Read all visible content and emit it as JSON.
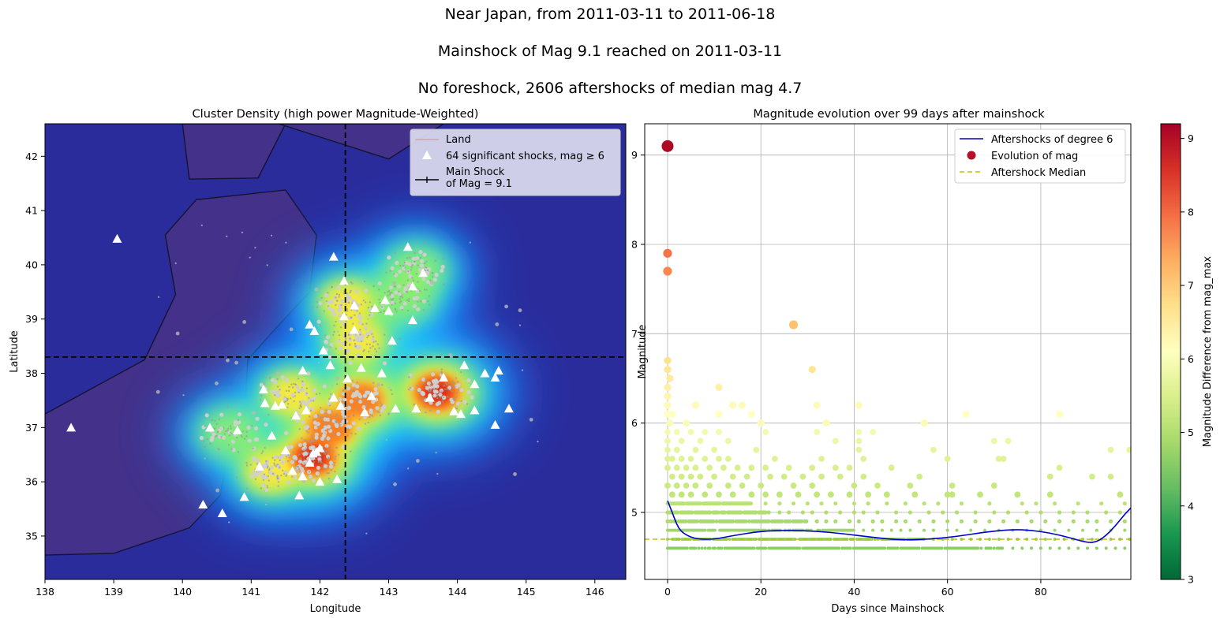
{
  "suptitle": {
    "line1": "Near Japan, from 2011-03-11 to 2011-06-18",
    "line2": "Mainshock of Mag 9.1 reached on 2011-03-11",
    "line3": "No foreshock, 2606 aftershocks of median mag 4.7"
  },
  "chart_data": [
    {
      "type": "scatter",
      "title": "Cluster Density (high power Magnitude-Weighted)",
      "xlabel": "Longitude",
      "ylabel": "Latitude",
      "xlim": [
        138,
        146.45
      ],
      "ylim": [
        34.2,
        42.6
      ],
      "xticks": [
        138,
        139,
        140,
        141,
        142,
        143,
        144,
        145,
        146
      ],
      "yticks": [
        35,
        36,
        37,
        38,
        39,
        40,
        41,
        42
      ],
      "mainshock": {
        "lon": 142.37,
        "lat": 38.3,
        "mag": 9.1
      },
      "legend": {
        "position": "top-right",
        "items": [
          {
            "label": "Land",
            "color": "#c9a7b5"
          },
          {
            "label": "64 significant shocks, mag ≥ 6",
            "color": "#ffffff"
          },
          {
            "label": "Main Shock\nof Mag = 9.1",
            "color": "#000000"
          }
        ]
      },
      "land_polygons": [
        [
          [
            138,
            37.25
          ],
          [
            139.45,
            38.25
          ],
          [
            139.9,
            39.45
          ],
          [
            139.75,
            40.55
          ],
          [
            140.2,
            41.2
          ],
          [
            141.5,
            41.38
          ],
          [
            141.95,
            40.55
          ],
          [
            141.85,
            39.5
          ],
          [
            141.3,
            38.75
          ],
          [
            140.95,
            38.25
          ],
          [
            140.9,
            37.2
          ],
          [
            140.65,
            36.5
          ],
          [
            140.55,
            35.75
          ],
          [
            140.1,
            35.15
          ],
          [
            139.0,
            34.68
          ],
          [
            138,
            34.65
          ]
        ],
        [
          [
            140.0,
            42.6
          ],
          [
            140.1,
            41.58
          ],
          [
            141.1,
            41.6
          ],
          [
            141.5,
            42.6
          ]
        ],
        [
          [
            141.4,
            42.6
          ],
          [
            143.0,
            41.95
          ],
          [
            143.8,
            42.6
          ]
        ]
      ],
      "density_clusters": [
        {
          "lon": 141.9,
          "lat": 36.45,
          "level": 1.0
        },
        {
          "lon": 142.15,
          "lat": 37.0,
          "level": 0.9
        },
        {
          "lon": 143.7,
          "lat": 37.65,
          "level": 1.0
        },
        {
          "lon": 142.6,
          "lat": 37.5,
          "level": 0.85
        },
        {
          "lon": 141.6,
          "lat": 37.6,
          "level": 0.5
        },
        {
          "lon": 142.55,
          "lat": 38.6,
          "level": 0.55
        },
        {
          "lon": 142.4,
          "lat": 39.3,
          "level": 0.5
        },
        {
          "lon": 143.2,
          "lat": 39.4,
          "level": 0.45
        },
        {
          "lon": 143.4,
          "lat": 39.9,
          "level": 0.4
        },
        {
          "lon": 140.7,
          "lat": 36.9,
          "level": 0.4
        },
        {
          "lon": 141.3,
          "lat": 36.2,
          "level": 0.55
        }
      ],
      "significant_shocks": [
        [
          139.05,
          40.48
        ],
        [
          138.38,
          37.0
        ],
        [
          140.3,
          35.58
        ],
        [
          140.4,
          37.0
        ],
        [
          140.58,
          35.42
        ],
        [
          140.9,
          35.72
        ],
        [
          141.18,
          37.7
        ],
        [
          141.2,
          37.45
        ],
        [
          141.35,
          37.4
        ],
        [
          141.12,
          36.28
        ],
        [
          141.5,
          36.58
        ],
        [
          141.65,
          37.22
        ],
        [
          141.75,
          38.05
        ],
        [
          141.8,
          37.32
        ],
        [
          141.85,
          38.9
        ],
        [
          141.92,
          38.78
        ],
        [
          141.6,
          36.2
        ],
        [
          141.7,
          35.75
        ],
        [
          141.85,
          36.35
        ],
        [
          141.95,
          36.55
        ],
        [
          142.0,
          36.0
        ],
        [
          142.2,
          37.55
        ],
        [
          142.25,
          36.05
        ],
        [
          142.3,
          37.4
        ],
        [
          142.35,
          39.05
        ],
        [
          142.5,
          39.25
        ],
        [
          142.35,
          39.7
        ],
        [
          142.2,
          40.15
        ],
        [
          142.6,
          38.1
        ],
        [
          142.75,
          37.58
        ],
        [
          142.8,
          39.2
        ],
        [
          142.95,
          39.35
        ],
        [
          143.0,
          39.15
        ],
        [
          143.1,
          37.35
        ],
        [
          143.28,
          40.33
        ],
        [
          143.35,
          38.98
        ],
        [
          143.35,
          39.6
        ],
        [
          143.5,
          39.85
        ],
        [
          143.4,
          37.35
        ],
        [
          143.8,
          37.92
        ],
        [
          143.95,
          37.3
        ],
        [
          144.05,
          37.25
        ],
        [
          144.1,
          38.15
        ],
        [
          144.25,
          37.8
        ],
        [
          144.25,
          37.32
        ],
        [
          144.55,
          37.92
        ],
        [
          144.6,
          38.05
        ],
        [
          144.55,
          37.05
        ],
        [
          144.75,
          37.35
        ],
        [
          141.9,
          36.52
        ],
        [
          142.0,
          36.62
        ],
        [
          141.75,
          36.1
        ],
        [
          142.65,
          37.28
        ],
        [
          142.5,
          38.8
        ],
        [
          142.05,
          38.42
        ],
        [
          141.45,
          37.42
        ],
        [
          142.9,
          38.0
        ],
        [
          143.6,
          37.55
        ],
        [
          142.4,
          37.9
        ],
        [
          141.3,
          36.85
        ],
        [
          140.8,
          36.95
        ],
        [
          142.15,
          38.15
        ],
        [
          143.05,
          38.6
        ],
        [
          144.4,
          38.0
        ]
      ],
      "small_events_summary": "about 2600 small gray epicenters"
    },
    {
      "type": "scatter",
      "title": "Magnitude evolution over 99 days after mainshock",
      "xlabel": "Days since Mainshock",
      "ylabel": "Magnitude",
      "xlim": [
        -4.9,
        99.3
      ],
      "ylim": [
        4.25,
        9.35
      ],
      "xticks": [
        0,
        20,
        40,
        60,
        80
      ],
      "yticks": [
        5,
        6,
        7,
        8,
        9
      ],
      "grid": true,
      "median": 4.7,
      "colorbar": {
        "label": "Magnitude Difference from mag_max",
        "range": [
          3,
          9.2
        ],
        "ticks": [
          3,
          4,
          5,
          6,
          7,
          8,
          9
        ],
        "colormap": "RdYlGn_r"
      },
      "legend": {
        "position": "top-right",
        "items": [
          {
            "label": "Aftershocks of degree 6",
            "color": "#0000cc"
          },
          {
            "label": "Evolution of mag",
            "color": "#b2122b"
          },
          {
            "label": "Aftershock Median",
            "color": "#bfbf00"
          }
        ]
      },
      "fit_curve": [
        [
          0,
          5.13
        ],
        [
          1,
          5.0
        ],
        [
          2,
          4.86
        ],
        [
          3,
          4.78
        ],
        [
          5,
          4.72
        ],
        [
          7,
          4.7
        ],
        [
          10,
          4.7
        ],
        [
          14,
          4.74
        ],
        [
          20,
          4.79
        ],
        [
          26,
          4.8
        ],
        [
          32,
          4.79
        ],
        [
          38,
          4.76
        ],
        [
          44,
          4.72
        ],
        [
          50,
          4.69
        ],
        [
          56,
          4.7
        ],
        [
          62,
          4.73
        ],
        [
          68,
          4.78
        ],
        [
          74,
          4.81
        ],
        [
          78,
          4.8
        ],
        [
          82,
          4.77
        ],
        [
          86,
          4.72
        ],
        [
          90,
          4.66
        ],
        [
          92,
          4.67
        ],
        [
          94,
          4.74
        ],
        [
          96,
          4.85
        ],
        [
          98,
          4.98
        ],
        [
          99.3,
          5.05
        ]
      ],
      "large_events": [
        {
          "day": 0,
          "mag": 9.1
        },
        {
          "day": 0,
          "mag": 7.9
        },
        {
          "day": 0,
          "mag": 7.7
        },
        {
          "day": 27,
          "mag": 7.1
        },
        {
          "day": 0,
          "mag": 6.7
        },
        {
          "day": 31,
          "mag": 6.6
        },
        {
          "day": 0,
          "mag": 6.6
        },
        {
          "day": 0.5,
          "mag": 6.5
        },
        {
          "day": 0,
          "mag": 6.4
        },
        {
          "day": 11,
          "mag": 6.4
        },
        {
          "day": 0,
          "mag": 6.3
        },
        {
          "day": 0,
          "mag": 6.2
        },
        {
          "day": 6,
          "mag": 6.2
        },
        {
          "day": 14,
          "mag": 6.2
        },
        {
          "day": 16,
          "mag": 6.2
        },
        {
          "day": 32,
          "mag": 6.2
        },
        {
          "day": 41,
          "mag": 6.2
        },
        {
          "day": 0,
          "mag": 6.1
        },
        {
          "day": 1,
          "mag": 6.1
        },
        {
          "day": 11,
          "mag": 6.1
        },
        {
          "day": 18,
          "mag": 6.1
        },
        {
          "day": 64,
          "mag": 6.1
        },
        {
          "day": 84,
          "mag": 6.1
        },
        {
          "day": 0.5,
          "mag": 6.0
        },
        {
          "day": 4,
          "mag": 6.0
        },
        {
          "day": 20,
          "mag": 6.0
        },
        {
          "day": 34,
          "mag": 6.0
        },
        {
          "day": 55,
          "mag": 6.0
        }
      ],
      "mid_events": [
        [
          0,
          5.9
        ],
        [
          2,
          5.9
        ],
        [
          5,
          5.9
        ],
        [
          8,
          5.9
        ],
        [
          11,
          5.9
        ],
        [
          21,
          5.9
        ],
        [
          32,
          5.9
        ],
        [
          41,
          5.9
        ],
        [
          44,
          5.9
        ],
        [
          0,
          5.8
        ],
        [
          3,
          5.8
        ],
        [
          7,
          5.8
        ],
        [
          13,
          5.8
        ],
        [
          36,
          5.8
        ],
        [
          41,
          5.8
        ],
        [
          70,
          5.8
        ],
        [
          73,
          5.8
        ],
        [
          0,
          5.7
        ],
        [
          2,
          5.7
        ],
        [
          6,
          5.7
        ],
        [
          10,
          5.7
        ],
        [
          19,
          5.7
        ],
        [
          41,
          5.7
        ],
        [
          57,
          5.7
        ],
        [
          95,
          5.7
        ],
        [
          99,
          5.7
        ],
        [
          0,
          5.6
        ],
        [
          1,
          5.6
        ],
        [
          3,
          5.6
        ],
        [
          5,
          5.6
        ],
        [
          8,
          5.6
        ],
        [
          11,
          5.6
        ],
        [
          13,
          5.6
        ],
        [
          23,
          5.6
        ],
        [
          33,
          5.6
        ],
        [
          42,
          5.6
        ],
        [
          60,
          5.6
        ],
        [
          71,
          5.6
        ],
        [
          72,
          5.6
        ],
        [
          0,
          5.5
        ],
        [
          2,
          5.5
        ],
        [
          4,
          5.5
        ],
        [
          6,
          5.5
        ],
        [
          9,
          5.5
        ],
        [
          12,
          5.5
        ],
        [
          15,
          5.5
        ],
        [
          18,
          5.5
        ],
        [
          21,
          5.5
        ],
        [
          26,
          5.5
        ],
        [
          31,
          5.5
        ],
        [
          36,
          5.5
        ],
        [
          39,
          5.5
        ],
        [
          48,
          5.5
        ],
        [
          84,
          5.5
        ],
        [
          1,
          5.4
        ],
        [
          3,
          5.4
        ],
        [
          5,
          5.4
        ],
        [
          7,
          5.4
        ],
        [
          10,
          5.4
        ],
        [
          14,
          5.4
        ],
        [
          17,
          5.4
        ],
        [
          22,
          5.4
        ],
        [
          25,
          5.4
        ],
        [
          29,
          5.4
        ],
        [
          33,
          5.4
        ],
        [
          37,
          5.4
        ],
        [
          42,
          5.4
        ],
        [
          54,
          5.4
        ],
        [
          82,
          5.4
        ],
        [
          91,
          5.4
        ],
        [
          95,
          5.4
        ],
        [
          0,
          5.3
        ],
        [
          2,
          5.3
        ],
        [
          4,
          5.3
        ],
        [
          6,
          5.3
        ],
        [
          9,
          5.3
        ],
        [
          13,
          5.3
        ],
        [
          16,
          5.3
        ],
        [
          20,
          5.3
        ],
        [
          27,
          5.3
        ],
        [
          31,
          5.3
        ],
        [
          40,
          5.3
        ],
        [
          45,
          5.3
        ],
        [
          52,
          5.3
        ],
        [
          61,
          5.3
        ],
        [
          70,
          5.3
        ],
        [
          1,
          5.2
        ],
        [
          3,
          5.2
        ],
        [
          5,
          5.2
        ],
        [
          8,
          5.2
        ],
        [
          11,
          5.2
        ],
        [
          14,
          5.2
        ],
        [
          18,
          5.2
        ],
        [
          21,
          5.2
        ],
        [
          24,
          5.2
        ],
        [
          28,
          5.2
        ],
        [
          32,
          5.2
        ],
        [
          35,
          5.2
        ],
        [
          39,
          5.2
        ],
        [
          43,
          5.2
        ],
        [
          47,
          5.2
        ],
        [
          53,
          5.2
        ],
        [
          60,
          5.2
        ],
        [
          61,
          5.2
        ],
        [
          67,
          5.2
        ],
        [
          75,
          5.2
        ],
        [
          82,
          5.2
        ],
        [
          97,
          5.2
        ]
      ],
      "dense_rows": [
        {
          "mag": 5.1,
          "until": 18,
          "sparse": [
            21,
            24,
            27,
            30,
            33,
            36,
            40,
            43,
            47,
            51,
            55,
            58,
            63,
            69,
            76,
            79,
            83,
            88,
            93,
            98
          ]
        },
        {
          "mag": 5.0,
          "until": 22,
          "sparse": [
            24,
            26,
            29,
            31,
            34,
            37,
            40,
            42,
            45,
            49,
            52,
            56,
            59,
            62,
            66,
            70,
            73,
            77,
            80,
            84,
            87,
            90,
            94,
            97
          ]
        },
        {
          "mag": 4.9,
          "until": 30,
          "sparse": [
            32,
            34,
            36,
            39,
            41,
            44,
            46,
            49,
            51,
            54,
            57,
            60,
            63,
            66,
            69,
            72,
            75,
            78,
            81,
            84,
            87,
            90,
            92,
            95,
            98
          ]
        },
        {
          "mag": 4.8,
          "until": 40,
          "sparse": [
            42,
            44,
            46,
            48,
            50,
            52,
            55,
            57,
            60,
            62,
            65,
            68,
            71,
            74,
            77,
            80,
            83,
            86,
            89,
            92,
            95,
            98
          ]
        },
        {
          "mag": 4.7,
          "until": 55,
          "sparse": [
            57,
            59,
            61,
            63,
            65,
            67,
            69,
            71,
            73,
            75,
            77,
            79,
            81,
            83,
            85,
            87,
            89,
            91,
            93,
            95,
            97,
            99
          ]
        },
        {
          "mag": 4.6,
          "until": 72,
          "sparse": [
            74,
            76,
            78,
            80,
            82,
            84,
            86,
            88,
            90,
            92,
            94,
            96,
            98
          ]
        }
      ]
    }
  ]
}
